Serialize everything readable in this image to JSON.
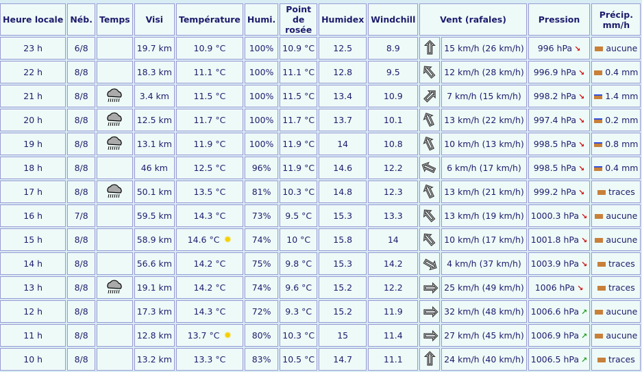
{
  "headers": [
    "Heure locale",
    "Néb.",
    "Temps",
    "Visi",
    "Température",
    "Humi.",
    "Point de rosée",
    "Humidex",
    "Windchill",
    "Vent (rafales)",
    "Pression",
    "Précip. mm/h"
  ],
  "colors": {
    "falling": "#d01010",
    "rising": "#20a020",
    "rain": "#3050e0",
    "bar": "#c8803a"
  },
  "rows": [
    {
      "heure": "23 h",
      "neb": "6/8",
      "temps": "",
      "visi": "19.7 km",
      "temp": "10.9 °C",
      "humi": "100%",
      "rosee": "10.9 °C",
      "humidex": "12.5",
      "windchill": "8.9",
      "wind_dir_deg": 0,
      "vent": "15 km/h (26 km/h)",
      "pression": "996 hPa",
      "tendance": "falling",
      "precip": "aucune",
      "rain": false
    },
    {
      "heure": "22 h",
      "neb": "8/8",
      "temps": "",
      "visi": "18.3 km",
      "temp": "11.1 °C",
      "humi": "100%",
      "rosee": "11.1 °C",
      "humidex": "12.8",
      "windchill": "9.5",
      "wind_dir_deg": -40,
      "vent": "12 km/h (28 km/h)",
      "pression": "996.9 hPa",
      "tendance": "falling",
      "precip": "0.4 mm",
      "rain": false
    },
    {
      "heure": "21 h",
      "neb": "8/8",
      "temps": "rain-cloud",
      "visi": "3.4 km",
      "temp": "11.5 °C",
      "humi": "100%",
      "rosee": "11.5 °C",
      "humidex": "13.4",
      "windchill": "10.9",
      "wind_dir_deg": 45,
      "vent": "7 km/h (15 km/h)",
      "pression": "998.2 hPa",
      "tendance": "falling",
      "precip": "1.4 mm",
      "rain": true
    },
    {
      "heure": "20 h",
      "neb": "8/8",
      "temps": "rain-cloud",
      "visi": "12.5 km",
      "temp": "11.7 °C",
      "humi": "100%",
      "rosee": "11.7 °C",
      "humidex": "13.7",
      "windchill": "10.1",
      "wind_dir_deg": -25,
      "vent": "13 km/h (22 km/h)",
      "pression": "997.4 hPa",
      "tendance": "falling",
      "precip": "0.2 mm",
      "rain": true
    },
    {
      "heure": "19 h",
      "neb": "8/8",
      "temps": "rain-cloud",
      "visi": "13.1 km",
      "temp": "11.9 °C",
      "humi": "100%",
      "rosee": "11.9 °C",
      "humidex": "14",
      "windchill": "10.8",
      "wind_dir_deg": -25,
      "vent": "10 km/h (13 km/h)",
      "pression": "998.5 hPa",
      "tendance": "falling",
      "precip": "0.8 mm",
      "rain": true
    },
    {
      "heure": "18 h",
      "neb": "8/8",
      "temps": "",
      "visi": "46 km",
      "temp": "12.5 °C",
      "humi": "96%",
      "rosee": "11.9 °C",
      "humidex": "14.6",
      "windchill": "12.2",
      "wind_dir_deg": -65,
      "vent": "6 km/h (17 km/h)",
      "pression": "998.5 hPa",
      "tendance": "falling",
      "precip": "0.4 mm",
      "rain": true
    },
    {
      "heure": "17 h",
      "neb": "8/8",
      "temps": "rain-cloud",
      "visi": "50.1 km",
      "temp": "13.5 °C",
      "humi": "81%",
      "rosee": "10.3 °C",
      "humidex": "14.8",
      "windchill": "12.3",
      "wind_dir_deg": -25,
      "vent": "13 km/h (21 km/h)",
      "pression": "999.2 hPa",
      "tendance": "falling",
      "precip": "traces",
      "rain": false
    },
    {
      "heure": "16 h",
      "neb": "7/8",
      "temps": "",
      "visi": "59.5 km",
      "temp": "14.3 °C",
      "humi": "73%",
      "rosee": "9.5 °C",
      "humidex": "15.3",
      "windchill": "13.3",
      "wind_dir_deg": -40,
      "vent": "13 km/h (19 km/h)",
      "pression": "1000.3 hPa",
      "tendance": "falling",
      "precip": "aucune",
      "rain": false
    },
    {
      "heure": "15 h",
      "neb": "8/8",
      "temps": "sun",
      "visi": "58.9 km",
      "temp": "14.6 °C",
      "humi": "74%",
      "rosee": "10 °C",
      "humidex": "15.8",
      "windchill": "14",
      "wind_dir_deg": -40,
      "vent": "10 km/h (17 km/h)",
      "pression": "1001.8 hPa",
      "tendance": "falling",
      "precip": "aucune",
      "rain": false
    },
    {
      "heure": "14 h",
      "neb": "8/8",
      "temps": "",
      "visi": "56.6 km",
      "temp": "14.2 °C",
      "humi": "75%",
      "rosee": "9.8 °C",
      "humidex": "15.3",
      "windchill": "14.2",
      "wind_dir_deg": 120,
      "vent": "4 km/h (37 km/h)",
      "pression": "1003.9 hPa",
      "tendance": "falling",
      "precip": "traces",
      "rain": false
    },
    {
      "heure": "13 h",
      "neb": "8/8",
      "temps": "rain-cloud",
      "visi": "19.1 km",
      "temp": "14.2 °C",
      "humi": "74%",
      "rosee": "9.6 °C",
      "humidex": "15.2",
      "windchill": "12.2",
      "wind_dir_deg": 90,
      "vent": "25 km/h (49 km/h)",
      "pression": "1006 hPa",
      "tendance": "falling",
      "precip": "traces",
      "rain": false
    },
    {
      "heure": "12 h",
      "neb": "8/8",
      "temps": "",
      "visi": "17.3 km",
      "temp": "14.3 °C",
      "humi": "72%",
      "rosee": "9.3 °C",
      "humidex": "15.2",
      "windchill": "11.9",
      "wind_dir_deg": 90,
      "vent": "32 km/h (48 km/h)",
      "pression": "1006.6 hPa",
      "tendance": "rising",
      "precip": "aucune",
      "rain": false
    },
    {
      "heure": "11 h",
      "neb": "8/8",
      "temps": "sun",
      "visi": "12.8 km",
      "temp": "13.7 °C",
      "humi": "80%",
      "rosee": "10.3 °C",
      "humidex": "15",
      "windchill": "11.4",
      "wind_dir_deg": 90,
      "vent": "27 km/h (45 km/h)",
      "pression": "1006.9 hPa",
      "tendance": "rising",
      "precip": "aucune",
      "rain": false
    },
    {
      "heure": "10 h",
      "neb": "8/8",
      "temps": "",
      "visi": "13.2 km",
      "temp": "13.3 °C",
      "humi": "83%",
      "rosee": "10.5 °C",
      "humidex": "14.7",
      "windchill": "11.1",
      "wind_dir_deg": 0,
      "vent": "24 km/h (40 km/h)",
      "pression": "1006.5 hPa",
      "tendance": "rising",
      "precip": "traces",
      "rain": false
    }
  ]
}
